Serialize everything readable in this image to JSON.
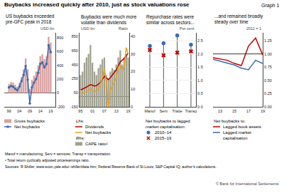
{
  "title": "Buybacks increased quickly after 2010, just as stock valuations rose",
  "annotations": [
    "Graph 1",
    "Manuf = manufacturing; Serv = services; Transp = transportation.",
    "¹ Total return cyclically adjusted price/earnings ratio.",
    "Sources: R Shiller, www.econ.yale.edu/–shiller/data.htm; Federal Reserve Bank of St Louis; S&P Capital IQ; author’s calculations.",
    "© Bank for International Settlements"
  ],
  "chart_data": [
    {
      "type": "bar",
      "title": "US buybacks exceeded\npre-GFC peak in 2018",
      "ylabel": "USD bn",
      "categories": [
        "99",
        null,
        null,
        null,
        null,
        "04",
        null,
        null,
        null,
        null,
        "09",
        null,
        null,
        null,
        null,
        "14",
        null,
        null,
        null,
        null,
        "19"
      ],
      "series": [
        {
          "name": "Gross buybacks",
          "type": "bar",
          "color": "#d9a0a0",
          "values": [
            130,
            160,
            150,
            120,
            90,
            150,
            230,
            340,
            500,
            340,
            60,
            190,
            250,
            310,
            400,
            530,
            560,
            490,
            530,
            810,
            730
          ]
        },
        {
          "name": "Net buybacks",
          "type": "line",
          "marker": "circle",
          "color": "#3a6baf",
          "values": [
            80,
            100,
            90,
            60,
            40,
            90,
            170,
            260,
            390,
            190,
            -150,
            80,
            150,
            200,
            290,
            420,
            440,
            370,
            420,
            690,
            590
          ]
        }
      ],
      "ylim": [
        -200,
        870
      ],
      "yticks": [
        -200,
        0,
        200,
        400,
        600,
        800
      ],
      "grid": false,
      "legend": "below",
      "annotations": []
    },
    {
      "type": "line",
      "title": "Buybacks were much more\nvolatile than dividends",
      "ylabel": "USD bn",
      "y2label": "Ratio",
      "categories": [
        "95",
        null,
        null,
        null,
        null,
        null,
        "01",
        null,
        null,
        null,
        null,
        null,
        "07",
        null,
        null,
        null,
        null,
        null,
        "13",
        null,
        null,
        null,
        null,
        null,
        "19"
      ],
      "series": [
        {
          "name": "CAPE ratio¹",
          "type": "bar",
          "axis": "y2",
          "color": "#a0a090",
          "values": [
            18,
            20,
            25,
            28,
            30,
            35,
            25,
            20,
            18,
            22,
            24,
            27,
            28,
            18,
            16,
            20,
            22,
            21,
            24,
            28,
            32,
            24,
            28,
            30,
            28
          ]
        },
        {
          "name": "Dividends",
          "type": "line",
          "color": "#c00000",
          "values": [
            90,
            100,
            115,
            130,
            145,
            165,
            155,
            145,
            150,
            170,
            195,
            240,
            280,
            260,
            235,
            265,
            300,
            330,
            375,
            430,
            490,
            510,
            535,
            570,
            615
          ]
        },
        {
          "name": "Net buybacks",
          "type": "line",
          "color": "#e8a020",
          "values": [
            35,
            45,
            55,
            65,
            85,
            110,
            85,
            60,
            75,
            105,
            175,
            260,
            390,
            205,
            -145,
            85,
            150,
            200,
            275,
            415,
            440,
            370,
            430,
            690,
            595
          ]
        }
      ],
      "ylim": [
        -150,
        900
      ],
      "yticks": [
        -150,
        50,
        250,
        450,
        650,
        850
      ],
      "y2lim": [
        0,
        42
      ],
      "y2ticks": [
        0,
        10,
        20,
        30,
        40
      ],
      "grid": false,
      "legend": "below",
      "annotations": [
        {
          "text": "Lhs:",
          "axis": "y"
        },
        {
          "text": "Rhs:",
          "axis": "y2"
        }
      ]
    },
    {
      "type": "dot",
      "title": "Repurchase rates were\nsimilar across sectors...",
      "ylabel": "Per cent",
      "categories": [
        "Manuf",
        "Serv",
        "Trade",
        "Transp"
      ],
      "series": [
        {
          "name": "2010–14",
          "type": "scatter",
          "marker": "circle",
          "color": "#3a6baf",
          "values": [
            2.3,
            2.4,
            2.7,
            2.35
          ]
        },
        {
          "name": "2015–19",
          "type": "scatter",
          "marker": "x",
          "color": "#c00000",
          "values": [
            2.15,
            1.95,
            2.05,
            2.1
          ]
        }
      ],
      "ylim": [
        0,
        2.8
      ],
      "yticks": [
        {
          "value": 0,
          "label": "0.0"
        },
        0.5,
        {
          "value": 1,
          "label": "1.0"
        },
        1.5,
        {
          "value": 2,
          "label": "2.0"
        },
        2.5
      ],
      "grid": true,
      "legend": "below",
      "annotations": [
        {
          "text": "Net buybacks to lagged\nmarket capitalisation:"
        }
      ]
    },
    {
      "type": "line",
      "title": "...and remained broadly\nsteady over time",
      "ylabel": "2011 = 1",
      "categories": [
        null,
        "13",
        null,
        "15",
        null,
        "17",
        null,
        "19"
      ],
      "series": [
        {
          "name": "Lagged book assets",
          "type": "line",
          "color": "#c00000",
          "values": [
            0.93,
            0.91,
            0.88,
            0.82,
            0.78,
            1.15,
            1.3,
            0.98
          ]
        },
        {
          "name": "Lagged market\ncapitalisation",
          "type": "line",
          "color": "#3a6baf",
          "values": [
            0.9,
            0.86,
            0.83,
            0.79,
            0.73,
            0.7,
            0.88,
            0.82
          ]
        }
      ],
      "ylim": [
        0,
        1.4
      ],
      "yticks": [
        {
          "value": 0,
          "label": "0.00"
        },
        0.25,
        {
          "value": 0.5,
          "label": "0.50"
        },
        0.75,
        {
          "value": 1,
          "label": "1.00"
        },
        1.25
      ],
      "hline": 1,
      "grid": false,
      "legend": "below",
      "annotations": [
        {
          "text": "Net buybacks to:"
        }
      ]
    }
  ]
}
